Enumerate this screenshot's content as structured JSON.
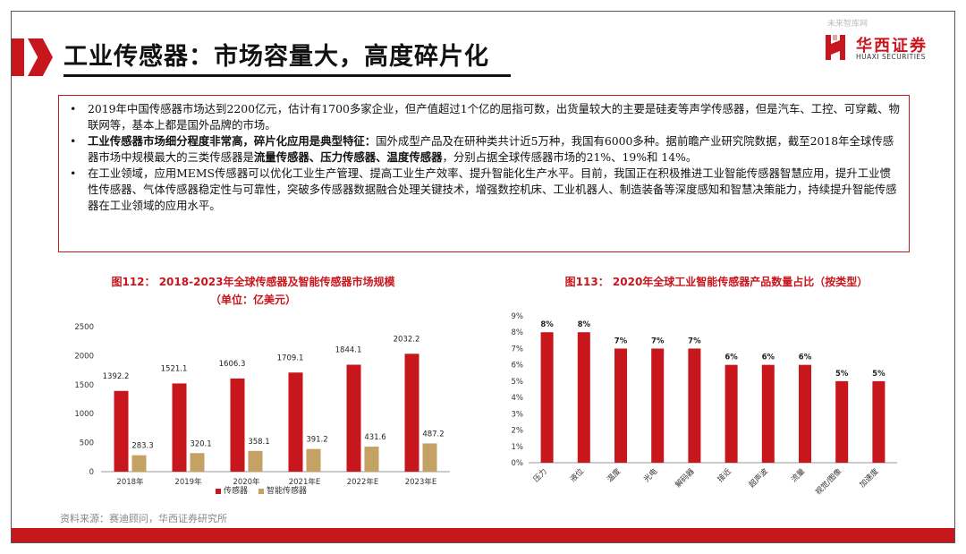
{
  "header": {
    "title": "工业传感器：市场容量大，高度碎片化",
    "watermark": "未来智库网",
    "logo_cn": "华西证券",
    "logo_en": "HUAXI SECURITIES"
  },
  "bullets": [
    {
      "parts": [
        {
          "text": "2019年中国传感器市场达到2200亿元，估计有1700多家企业，但产值超过1个亿的屈指可数，出货量较大的主要是硅麦等声学传感器，但是汽车、工控、可穿戴、物联网等，基本上都是国外品牌的市场。",
          "bold": false
        }
      ]
    },
    {
      "parts": [
        {
          "text": "工业传感器市场细分程度非常高，碎片化应用是典型特征：",
          "bold": true
        },
        {
          "text": "国外成型产品及在研种类共计近5万种，我国有6000多种。据前瞻产业研究院数据，截至2018年全球传感器市场中规模最大的三类传感器是",
          "bold": false
        },
        {
          "text": "流量传感器、压力传感器、温度传感器",
          "bold": true
        },
        {
          "text": "，分别占据全球传感器市场的21%、19%和 14%。",
          "bold": false
        }
      ]
    },
    {
      "parts": [
        {
          "text": "在工业领域，应用MEMS传感器可以优化工业生产管理、提高工业生产效率、提升智能化生产水平。目前，我国正在积极推进工业智能传感器智慧应用，提升工业惯性传感器、气体传感器稳定性与可靠性，突破多传感器数据融合处理关键技术，增强数控机床、工业机器人、制造装备等深度感知和智慧决策能力，持续提升智能传感器在工业领域的应用水平。",
          "bold": false
        }
      ]
    }
  ],
  "chart_titles": {
    "left": "图112： 2018-2023年全球传感器及智能传感器市场规模（单位：亿美元）",
    "right": "图113： 2020年全球工业智能传感器产品数量占比（按类型）"
  },
  "chart_data": [
    {
      "type": "bar",
      "title": "图112： 2018-2023年全球传感器及智能传感器市场规模（单位：亿美元）",
      "categories": [
        "2018年",
        "2019年",
        "2020年",
        "2021年E",
        "2022年E",
        "2023年E"
      ],
      "series": [
        {
          "name": "传感器",
          "color": "#c8161d",
          "values": [
            1392.2,
            1521.1,
            1606.3,
            1709.1,
            1844.1,
            2032.2
          ],
          "labels": [
            "1392.2",
            "1521.1",
            "1606.3",
            "1709.1",
            "1844.1",
            "2032.2"
          ]
        },
        {
          "name": "智能传感器",
          "color": "#c4a264",
          "values": [
            283.3,
            320.1,
            358.1,
            391.2,
            431.6,
            487.2
          ],
          "labels": [
            "283.3",
            "320.1",
            "358.1",
            "391.2",
            "431.6",
            "487.2"
          ]
        }
      ],
      "ylim": [
        0,
        2500
      ],
      "yticks": [
        "0",
        "500",
        "1000",
        "1500",
        "2000",
        "2500"
      ],
      "grid": false,
      "legend": "bottom"
    },
    {
      "type": "bar",
      "title": "图113： 2020年全球工业智能传感器产品数量占比（按类型）",
      "categories": [
        "压力",
        "液位",
        "温度",
        "光电",
        "解码器",
        "接近",
        "超声波",
        "流量",
        "视觉/图像",
        "加速度"
      ],
      "values": [
        8,
        8,
        7,
        7,
        7,
        6,
        6,
        6,
        5,
        5
      ],
      "labels": [
        "8%",
        "8%",
        "7%",
        "7%",
        "7%",
        "6%",
        "6%",
        "6%",
        "5%",
        "5%"
      ],
      "color": "#c8161d",
      "ylim": [
        0,
        9
      ],
      "yticks": [
        "0%",
        "1%",
        "2%",
        "3%",
        "4%",
        "5%",
        "6%",
        "7%",
        "8%",
        "9%"
      ],
      "grid": false
    }
  ],
  "source": "资料来源：赛迪顾问，华西证券研究所",
  "colors": {
    "brand": "#c8161d",
    "gold": "#c4a264"
  }
}
